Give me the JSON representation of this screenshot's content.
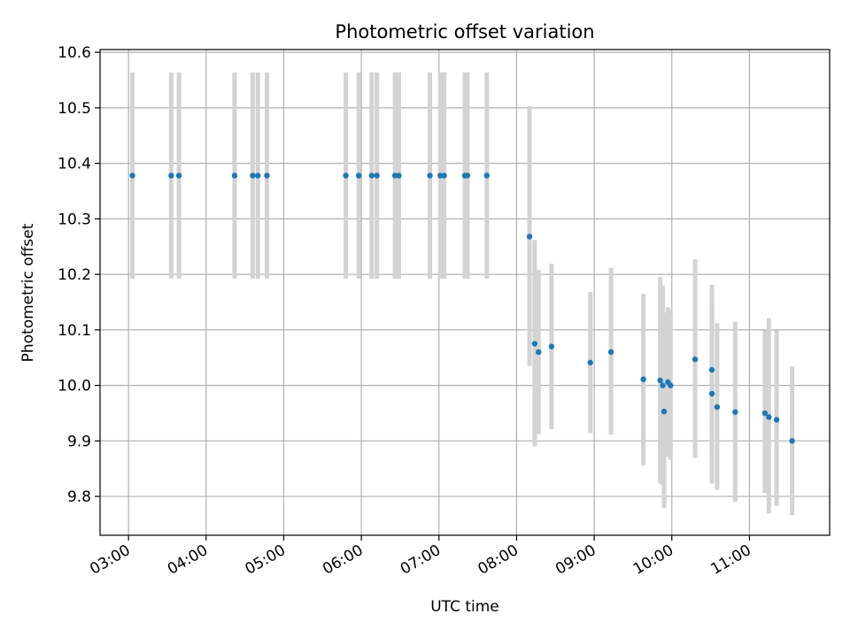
{
  "chart_data": {
    "type": "scatter",
    "title": "Photometric offset variation",
    "xlabel": "UTC time",
    "ylabel": "Photometric offset",
    "xlim": [
      "02:38",
      "12:02"
    ],
    "ylim": [
      9.73,
      10.605
    ],
    "xticks": [
      "03:00",
      "04:00",
      "05:00",
      "06:00",
      "07:00",
      "08:00",
      "09:00",
      "10:00",
      "11:00"
    ],
    "yticks": [
      "9.8",
      "9.9",
      "10.0",
      "10.1",
      "10.2",
      "10.3",
      "10.4",
      "10.5",
      "10.6"
    ],
    "grid": true,
    "error_bar_color": "#d3d3d3",
    "marker_color": "#1f77b4",
    "points": [
      {
        "x": "03:03",
        "y": 10.378,
        "ylo": 10.192,
        "yhi": 10.564
      },
      {
        "x": "03:33",
        "y": 10.378,
        "ylo": 10.192,
        "yhi": 10.564
      },
      {
        "x": "03:39",
        "y": 10.378,
        "ylo": 10.192,
        "yhi": 10.564
      },
      {
        "x": "04:22",
        "y": 10.378,
        "ylo": 10.192,
        "yhi": 10.564
      },
      {
        "x": "04:36",
        "y": 10.378,
        "ylo": 10.192,
        "yhi": 10.564
      },
      {
        "x": "04:40",
        "y": 10.378,
        "ylo": 10.192,
        "yhi": 10.564
      },
      {
        "x": "04:47",
        "y": 10.378,
        "ylo": 10.192,
        "yhi": 10.564
      },
      {
        "x": "05:48",
        "y": 10.378,
        "ylo": 10.192,
        "yhi": 10.564
      },
      {
        "x": "05:58",
        "y": 10.378,
        "ylo": 10.192,
        "yhi": 10.564
      },
      {
        "x": "06:08",
        "y": 10.378,
        "ylo": 10.192,
        "yhi": 10.564
      },
      {
        "x": "06:12",
        "y": 10.378,
        "ylo": 10.192,
        "yhi": 10.564
      },
      {
        "x": "06:26",
        "y": 10.378,
        "ylo": 10.192,
        "yhi": 10.564
      },
      {
        "x": "06:29",
        "y": 10.378,
        "ylo": 10.192,
        "yhi": 10.564
      },
      {
        "x": "06:53",
        "y": 10.378,
        "ylo": 10.192,
        "yhi": 10.564
      },
      {
        "x": "07:01",
        "y": 10.378,
        "ylo": 10.192,
        "yhi": 10.564
      },
      {
        "x": "07:04",
        "y": 10.378,
        "ylo": 10.192,
        "yhi": 10.564
      },
      {
        "x": "07:20",
        "y": 10.378,
        "ylo": 10.192,
        "yhi": 10.564
      },
      {
        "x": "07:22",
        "y": 10.378,
        "ylo": 10.192,
        "yhi": 10.564
      },
      {
        "x": "07:37",
        "y": 10.378,
        "ylo": 10.192,
        "yhi": 10.564
      },
      {
        "x": "08:10",
        "y": 10.268,
        "ylo": 10.035,
        "yhi": 10.503
      },
      {
        "x": "08:14",
        "y": 10.075,
        "ylo": 9.89,
        "yhi": 10.262
      },
      {
        "x": "08:17",
        "y": 10.06,
        "ylo": 9.912,
        "yhi": 10.208
      },
      {
        "x": "08:27",
        "y": 10.07,
        "ylo": 9.921,
        "yhi": 10.219
      },
      {
        "x": "08:57",
        "y": 10.041,
        "ylo": 9.914,
        "yhi": 10.168
      },
      {
        "x": "09:13",
        "y": 10.06,
        "ylo": 9.911,
        "yhi": 10.212
      },
      {
        "x": "09:38",
        "y": 10.011,
        "ylo": 9.856,
        "yhi": 10.165
      },
      {
        "x": "09:51",
        "y": 10.009,
        "ylo": 9.823,
        "yhi": 10.195
      },
      {
        "x": "09:53",
        "y": 10.0,
        "ylo": 9.82,
        "yhi": 10.18
      },
      {
        "x": "09:54",
        "y": 9.953,
        "ylo": 9.779,
        "yhi": 10.131
      },
      {
        "x": "09:57",
        "y": 10.006,
        "ylo": 9.871,
        "yhi": 10.141
      },
      {
        "x": "09:59",
        "y": 10.0,
        "ylo": 9.866,
        "yhi": 10.135
      },
      {
        "x": "10:18",
        "y": 10.047,
        "ylo": 9.869,
        "yhi": 10.227
      },
      {
        "x": "10:31",
        "y": 9.985,
        "ylo": 9.823,
        "yhi": 10.147
      },
      {
        "x": "10:31",
        "y": 10.028,
        "ylo": 9.876,
        "yhi": 10.181
      },
      {
        "x": "10:35",
        "y": 9.961,
        "ylo": 9.812,
        "yhi": 10.112
      },
      {
        "x": "10:49",
        "y": 9.952,
        "ylo": 9.79,
        "yhi": 10.115
      },
      {
        "x": "11:12",
        "y": 9.95,
        "ylo": 9.806,
        "yhi": 10.099
      },
      {
        "x": "11:15",
        "y": 9.943,
        "ylo": 9.769,
        "yhi": 10.121
      },
      {
        "x": "11:21",
        "y": 9.938,
        "ylo": 9.783,
        "yhi": 10.099
      },
      {
        "x": "11:33",
        "y": 9.9,
        "ylo": 9.766,
        "yhi": 10.034
      }
    ]
  }
}
